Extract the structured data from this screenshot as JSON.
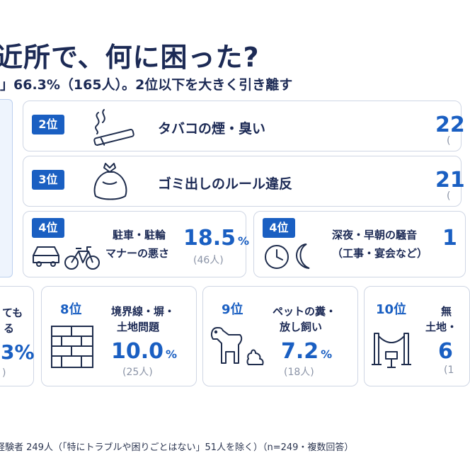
{
  "title": "近所で、何に困った?",
  "subtitle": "」66.3%（165人）。2位以下を大きく引き離す",
  "footer": "経験者 249人（「特にトラブルや困りごとはない」51人を除く）（n=249・複数回答）",
  "colors": {
    "accent": "#1a5fc2",
    "title": "#1c2a55",
    "border": "#cfd6e4",
    "muted": "#8a93a6",
    "rank1_bg": "#eef4fd"
  },
  "chart_data": {
    "type": "ranking",
    "unit": "%",
    "items": [
      {
        "rank_label": "2位",
        "label": "タバコの煙・臭い",
        "value_text": "22",
        "persons": "(",
        "icon": "cigarette-icon"
      },
      {
        "rank_label": "3位",
        "label": "ゴミ出しのルール違反",
        "value_text": "21",
        "persons": "(",
        "icon": "garbage-bag-icon"
      },
      {
        "rank_label": "4位",
        "label_lines": [
          "駐車・駐輪",
          "マナーの悪さ"
        ],
        "value": 18.5,
        "value_text": "18.5",
        "persons": "(46人)",
        "icon": "car-bicycle-icon"
      },
      {
        "rank_label": "4位",
        "label_lines": [
          "深夜・早朝の騒音",
          "（工事・宴会など）"
        ],
        "value_text": "1",
        "icon": "clock-moon-icon"
      },
      {
        "rank_label": "",
        "label_lines": [
          "ても",
          "る"
        ],
        "value_text": "3%",
        "persons": ")",
        "icon": ""
      },
      {
        "rank_label": "8位",
        "label_lines": [
          "境界線・塀・",
          "土地問題"
        ],
        "value": 10.0,
        "value_text": "10.0",
        "persons": "(25人)",
        "icon": "brick-wall-icon"
      },
      {
        "rank_label": "9位",
        "label_lines": [
          "ペットの糞・",
          "放し飼い"
        ],
        "value": 7.2,
        "value_text": "7.2",
        "persons": "(18人)",
        "icon": "dog-poop-icon"
      },
      {
        "rank_label": "10位",
        "label_lines": [
          "無",
          "土地・"
        ],
        "value_text": "6",
        "persons": "(1",
        "icon": "barrier-icon"
      }
    ]
  }
}
